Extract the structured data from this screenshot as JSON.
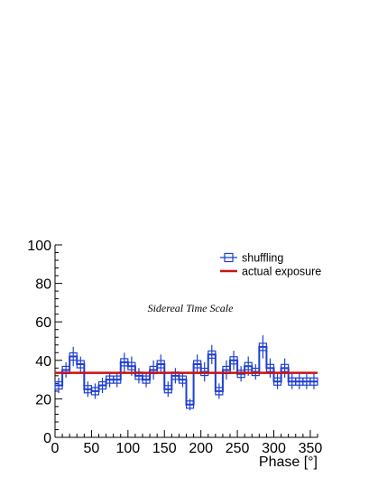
{
  "chart_data": {
    "type": "line",
    "xlabel": "Phase [°]",
    "ylabel": "",
    "xlim": [
      0,
      360
    ],
    "ylim": [
      0,
      100
    ],
    "x_ticks": [
      0,
      50,
      100,
      150,
      200,
      250,
      300,
      350
    ],
    "y_ticks": [
      0,
      20,
      40,
      60,
      80,
      100
    ],
    "grid": false,
    "legend_placement": "top-right",
    "annotation": "Sidereal Time Scale",
    "bin_width": 10,
    "series": [
      {
        "name": "shuffling",
        "style": "step-with-errorbars",
        "color": "#1f3fd1",
        "x": [
          5,
          15,
          25,
          35,
          45,
          55,
          65,
          75,
          85,
          95,
          105,
          115,
          125,
          135,
          145,
          155,
          165,
          175,
          185,
          195,
          205,
          215,
          225,
          235,
          245,
          255,
          265,
          275,
          285,
          295,
          305,
          315,
          325,
          335,
          345,
          355
        ],
        "values": [
          27,
          35,
          42,
          38,
          25,
          24,
          27,
          30,
          30,
          39,
          37,
          32,
          30,
          35,
          38,
          25,
          32,
          30,
          17,
          38,
          34,
          43,
          24,
          35,
          40,
          33,
          37,
          34,
          47,
          36,
          29,
          36,
          29,
          29,
          29,
          29
        ],
        "errors": [
          4,
          4,
          5,
          4,
          4,
          4,
          4,
          4,
          4,
          5,
          5,
          4,
          4,
          5,
          5,
          4,
          4,
          4,
          3,
          5,
          5,
          5,
          4,
          5,
          5,
          4,
          5,
          4,
          6,
          5,
          4,
          5,
          4,
          4,
          4,
          4
        ]
      },
      {
        "name": "actual exposure",
        "style": "line",
        "color": "#cc1111",
        "x": [
          0,
          360
        ],
        "values": [
          33.5,
          33.5
        ]
      }
    ]
  }
}
